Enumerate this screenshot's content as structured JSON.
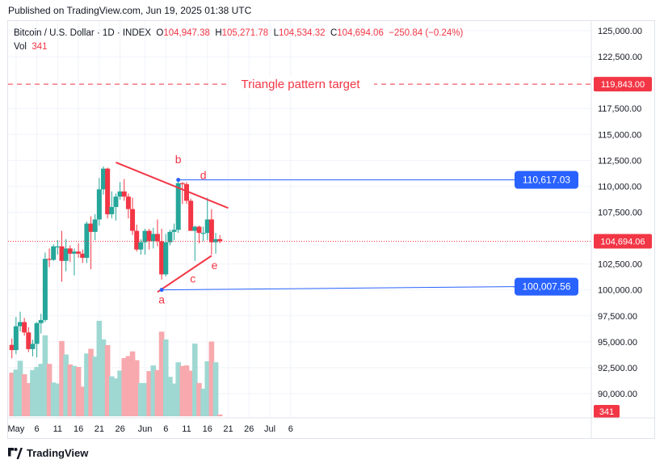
{
  "header": {
    "published": "Published on TradingView.com, Jun 19, 2025 01:38 UTC"
  },
  "legend": {
    "symbol": "Bitcoin / U.S. Dollar · 1D · INDEX",
    "o_label": "O",
    "o_value": "104,947.38",
    "h_label": "H",
    "h_value": "105,271.78",
    "l_label": "L",
    "l_value": "104,534.32",
    "c_label": "C",
    "c_value": "104,694.06",
    "change": "−250.84 (−0.24%)",
    "vol_label": "Vol",
    "vol_value": "341"
  },
  "footer": {
    "brand": "TradingView"
  },
  "colors": {
    "up": "#26a69a",
    "down": "#f23645",
    "up_vol": "#9fd8d2",
    "down_vol": "#f7a9ae",
    "blue": "#2962ff",
    "grid": "#f0f3fa",
    "text": "#131722"
  },
  "chart_data": {
    "type": "candlestick",
    "y_axis": {
      "range": [
        88500,
        126000
      ],
      "ticks": [
        125000,
        122500,
        117500,
        115000,
        112500,
        110000,
        107500,
        102500,
        100000,
        97500,
        95000,
        92500,
        90000
      ],
      "tick_labels": [
        "125,000.00",
        "122,500.00",
        "117,500.00",
        "115,000.00",
        "112,500.00",
        "110,000.00",
        "107,500.00",
        "102,500.00",
        "100,000.00",
        "97,500.00",
        "95,000.00",
        "92,500.00",
        "90,000.00"
      ],
      "position": "right"
    },
    "x_axis": {
      "start_date": "2025-04-30",
      "labels": [
        {
          "label": "May",
          "day": 1
        },
        {
          "label": "6",
          "day": 6
        },
        {
          "label": "11",
          "day": 11
        },
        {
          "label": "16",
          "day": 16
        },
        {
          "label": "21",
          "day": 21
        },
        {
          "label": "26",
          "day": 26
        },
        {
          "label": "Jun",
          "day": 32
        },
        {
          "label": "6",
          "day": 37
        },
        {
          "label": "11",
          "day": 42
        },
        {
          "label": "16",
          "day": 47
        },
        {
          "label": "21",
          "day": 52
        },
        {
          "label": "26",
          "day": 57
        },
        {
          "label": "Jul",
          "day": 62
        },
        {
          "label": "6",
          "day": 67
        }
      ]
    },
    "candles": [
      {
        "date": "Apr 30",
        "o": 94700,
        "h": 95300,
        "l": 93400,
        "c": 94200,
        "v": 8400
      },
      {
        "date": "May 1",
        "o": 94200,
        "h": 97400,
        "l": 93800,
        "c": 96500,
        "v": 9000
      },
      {
        "date": "May 2",
        "o": 96500,
        "h": 97900,
        "l": 96000,
        "c": 96900,
        "v": 10700
      },
      {
        "date": "May 3",
        "o": 96900,
        "h": 97300,
        "l": 95600,
        "c": 95900,
        "v": 8100
      },
      {
        "date": "May 4",
        "o": 95900,
        "h": 96400,
        "l": 94000,
        "c": 94300,
        "v": 6400
      },
      {
        "date": "May 5",
        "o": 94300,
        "h": 95200,
        "l": 93600,
        "c": 94800,
        "v": 8900
      },
      {
        "date": "May 6",
        "o": 94800,
        "h": 96900,
        "l": 93500,
        "c": 96800,
        "v": 9500
      },
      {
        "date": "May 7",
        "o": 96800,
        "h": 97700,
        "l": 95800,
        "c": 97100,
        "v": 10100
      },
      {
        "date": "May 8",
        "o": 97100,
        "h": 103600,
        "l": 96900,
        "c": 103000,
        "v": 15600
      },
      {
        "date": "May 9",
        "o": 103000,
        "h": 104000,
        "l": 102200,
        "c": 102900,
        "v": 10100
      },
      {
        "date": "May 10",
        "o": 102900,
        "h": 104400,
        "l": 102800,
        "c": 104200,
        "v": 6500
      },
      {
        "date": "May 11",
        "o": 104200,
        "h": 104800,
        "l": 103400,
        "c": 104200,
        "v": 6300
      },
      {
        "date": "May 12",
        "o": 104200,
        "h": 105700,
        "l": 100800,
        "c": 102800,
        "v": 14500
      },
      {
        "date": "May 13",
        "o": 102800,
        "h": 104900,
        "l": 101800,
        "c": 104000,
        "v": 11900
      },
      {
        "date": "May 14",
        "o": 104000,
        "h": 104300,
        "l": 102700,
        "c": 103500,
        "v": 10000
      },
      {
        "date": "May 15",
        "o": 103500,
        "h": 104000,
        "l": 101400,
        "c": 103700,
        "v": 9700
      },
      {
        "date": "May 16",
        "o": 103700,
        "h": 104500,
        "l": 103100,
        "c": 103500,
        "v": 9500
      },
      {
        "date": "May 17",
        "o": 103500,
        "h": 103900,
        "l": 102600,
        "c": 103100,
        "v": 5700
      },
      {
        "date": "May 18",
        "o": 103100,
        "h": 106600,
        "l": 102600,
        "c": 106400,
        "v": 12100
      },
      {
        "date": "May 19",
        "o": 106400,
        "h": 107100,
        "l": 102000,
        "c": 105600,
        "v": 13000
      },
      {
        "date": "May 20",
        "o": 105600,
        "h": 107300,
        "l": 104800,
        "c": 106800,
        "v": 11500
      },
      {
        "date": "May 21",
        "o": 106800,
        "h": 110800,
        "l": 106200,
        "c": 109700,
        "v": 18400
      },
      {
        "date": "May 22",
        "o": 109700,
        "h": 111900,
        "l": 109200,
        "c": 111700,
        "v": 14800
      },
      {
        "date": "May 23",
        "o": 111700,
        "h": 111800,
        "l": 106900,
        "c": 107300,
        "v": 13700
      },
      {
        "date": "May 24",
        "o": 107300,
        "h": 109500,
        "l": 106900,
        "c": 108000,
        "v": 7700
      },
      {
        "date": "May 25",
        "o": 108000,
        "h": 109300,
        "l": 106700,
        "c": 109000,
        "v": 7300
      },
      {
        "date": "May 26",
        "o": 109000,
        "h": 110400,
        "l": 108700,
        "c": 109500,
        "v": 8800
      },
      {
        "date": "May 27",
        "o": 109500,
        "h": 110700,
        "l": 108600,
        "c": 109000,
        "v": 11200
      },
      {
        "date": "May 28",
        "o": 109000,
        "h": 109300,
        "l": 106900,
        "c": 107800,
        "v": 11600
      },
      {
        "date": "May 29",
        "o": 107800,
        "h": 108900,
        "l": 105300,
        "c": 105700,
        "v": 12500
      },
      {
        "date": "May 30",
        "o": 105700,
        "h": 106300,
        "l": 103700,
        "c": 103900,
        "v": 10800
      },
      {
        "date": "May 31",
        "o": 103900,
        "h": 104900,
        "l": 103400,
        "c": 104600,
        "v": 6400
      },
      {
        "date": "Jun 1",
        "o": 104600,
        "h": 105900,
        "l": 103400,
        "c": 105700,
        "v": 6400
      },
      {
        "date": "Jun 2",
        "o": 105700,
        "h": 105900,
        "l": 103900,
        "c": 104700,
        "v": 8700
      },
      {
        "date": "Jun 3",
        "o": 104700,
        "h": 106000,
        "l": 104000,
        "c": 105400,
        "v": 9800
      },
      {
        "date": "Jun 4",
        "o": 105400,
        "h": 106800,
        "l": 104200,
        "c": 104700,
        "v": 8900
      },
      {
        "date": "Jun 5",
        "o": 104700,
        "h": 105900,
        "l": 101000,
        "c": 101500,
        "v": 16300
      },
      {
        "date": "Jun 6",
        "o": 101500,
        "h": 105400,
        "l": 101300,
        "c": 104600,
        "v": 14800
      },
      {
        "date": "Jun 7",
        "o": 104600,
        "h": 105800,
        "l": 104300,
        "c": 105600,
        "v": 7600
      },
      {
        "date": "Jun 8",
        "o": 105600,
        "h": 106400,
        "l": 104800,
        "c": 105800,
        "v": 6300
      },
      {
        "date": "Jun 9",
        "o": 105800,
        "h": 110600,
        "l": 105500,
        "c": 110300,
        "v": 10400
      },
      {
        "date": "Jun 10",
        "o": 110300,
        "h": 110400,
        "l": 108300,
        "c": 110200,
        "v": 9700
      },
      {
        "date": "Jun 11",
        "o": 110200,
        "h": 110400,
        "l": 108300,
        "c": 108600,
        "v": 9800
      },
      {
        "date": "Jun 12",
        "o": 108600,
        "h": 108800,
        "l": 105700,
        "c": 105700,
        "v": 8800
      },
      {
        "date": "Jun 13",
        "o": 105700,
        "h": 106200,
        "l": 102800,
        "c": 106100,
        "v": 14000
      },
      {
        "date": "Jun 14",
        "o": 106100,
        "h": 106200,
        "l": 104500,
        "c": 105500,
        "v": 6400
      },
      {
        "date": "Jun 15",
        "o": 105500,
        "h": 106100,
        "l": 104700,
        "c": 105500,
        "v": 5300
      },
      {
        "date": "Jun 16",
        "o": 105500,
        "h": 108900,
        "l": 104800,
        "c": 106800,
        "v": 10600
      },
      {
        "date": "Jun 17",
        "o": 106800,
        "h": 107800,
        "l": 103400,
        "c": 104600,
        "v": 14400
      },
      {
        "date": "Jun 18",
        "o": 104600,
        "h": 105500,
        "l": 103500,
        "c": 104900,
        "v": 10400
      },
      {
        "date": "Jun 19",
        "o": 104900,
        "h": 105300,
        "l": 104500,
        "c": 104700,
        "v": 341
      }
    ],
    "volume_max": 19000,
    "last_price": "104,694.06",
    "target": {
      "value": 119843,
      "label": "Triangle pattern target",
      "price_label": "119,843.00"
    },
    "trendlines": [
      {
        "name": "upper",
        "from": {
          "day": 25,
          "price": 112300
        },
        "to": {
          "day": 52,
          "price": 107900
        }
      },
      {
        "name": "lower",
        "from": {
          "day": 35,
          "price": 99800
        },
        "to": {
          "day": 48,
          "price": 103300
        }
      }
    ],
    "levels": [
      {
        "value": 110617.03,
        "label": "110,617.03",
        "from_day": 40
      },
      {
        "value": 100007.56,
        "label": "100,007.56",
        "from_day": 36
      }
    ],
    "wave_labels": [
      {
        "text": "a",
        "day": 36,
        "price": 98700
      },
      {
        "text": "b",
        "day": 40,
        "price": 112200
      },
      {
        "text": "c",
        "day": 43.5,
        "price": 100700
      },
      {
        "text": "d",
        "day": 46,
        "price": 110700
      },
      {
        "text": "e",
        "day": 48.7,
        "price": 102000
      }
    ],
    "volume_label": "341"
  }
}
